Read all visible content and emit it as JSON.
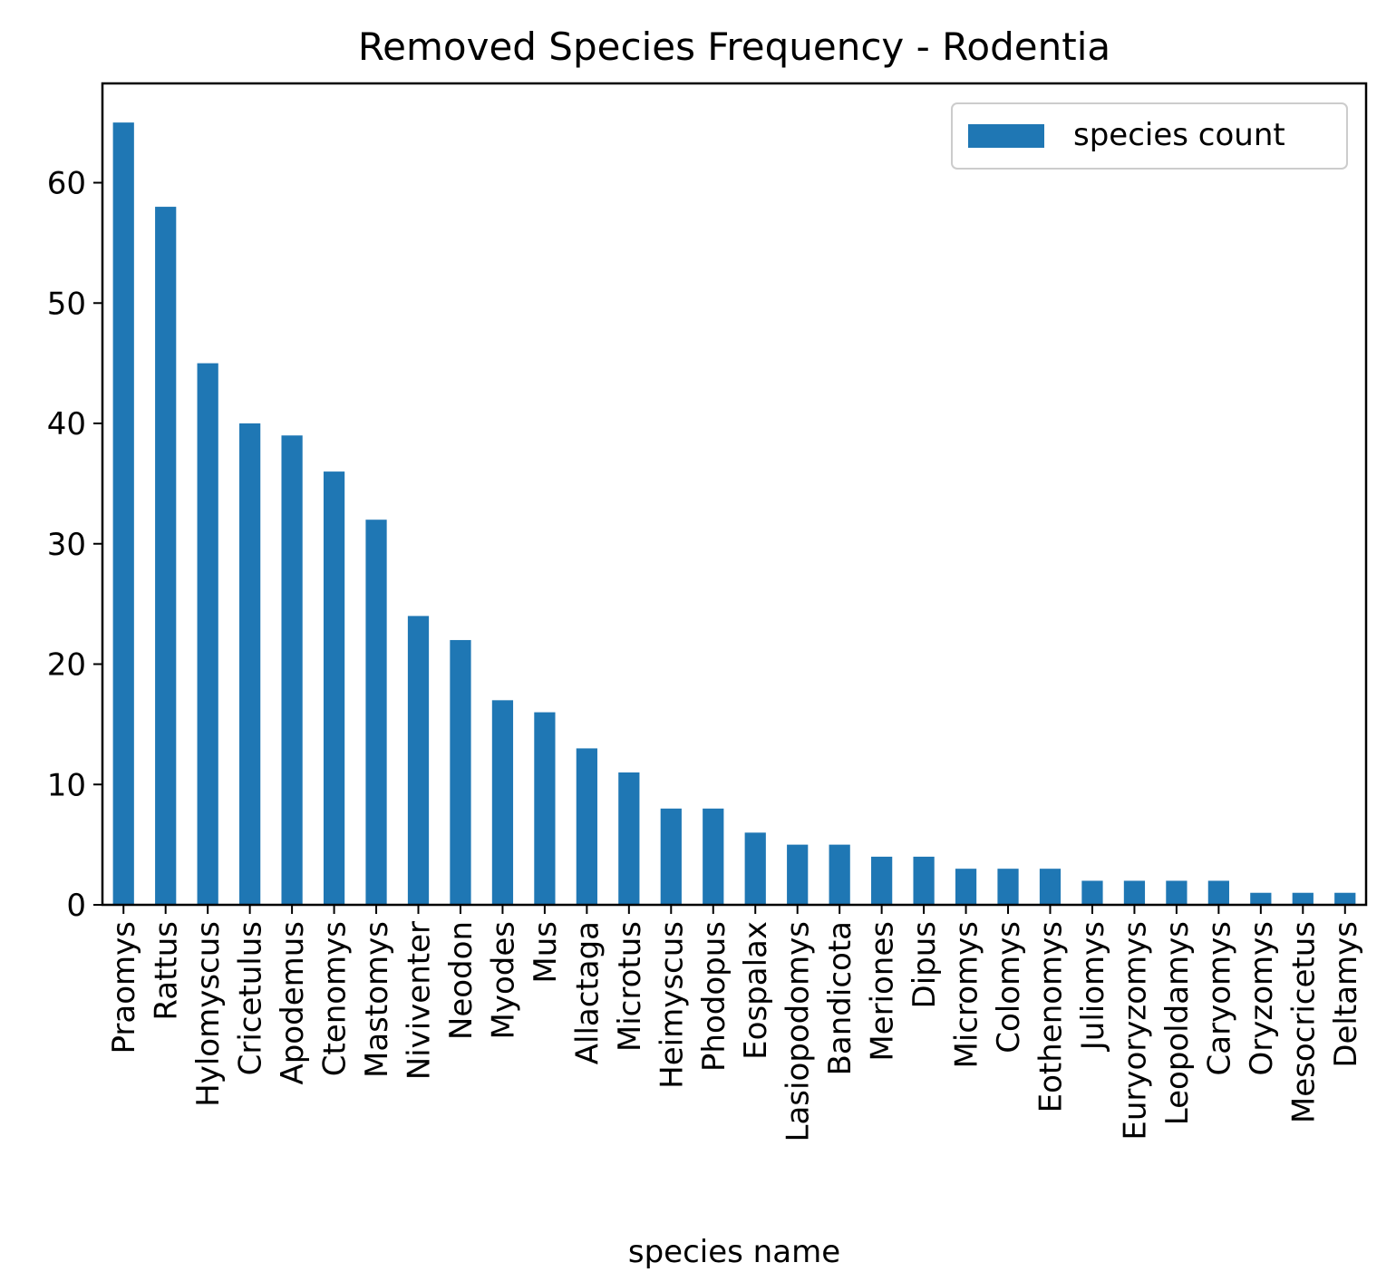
{
  "chart_data": {
    "type": "bar",
    "title": "Removed Species Frequency - Rodentia",
    "xlabel": "species name",
    "ylabel": "",
    "ylim": [
      0,
      68.25
    ],
    "yticks": [
      0,
      10,
      20,
      30,
      40,
      50,
      60
    ],
    "grid": false,
    "legend_position": "top-right",
    "bar_color": "#1f77b4",
    "categories": [
      "Praomys",
      "Rattus",
      "Hylomyscus",
      "Cricetulus",
      "Apodemus",
      "Ctenomys",
      "Mastomys",
      "Niviventer",
      "Neodon",
      "Myodes",
      "Mus",
      "Allactaga",
      "Microtus",
      "Heimyscus",
      "Phodopus",
      "Eospalax",
      "Lasiopodomys",
      "Bandicota",
      "Meriones",
      "Dipus",
      "Micromys",
      "Colomys",
      "Eothenomys",
      "Juliomys",
      "Euryoryzomys",
      "Leopoldamys",
      "Caryomys",
      "Oryzomys",
      "Mesocricetus",
      "Deltamys"
    ],
    "series": [
      {
        "name": "species count",
        "values": [
          65,
          58,
          45,
          40,
          39,
          36,
          32,
          24,
          22,
          17,
          16,
          13,
          11,
          8,
          8,
          6,
          5,
          5,
          4,
          4,
          3,
          3,
          3,
          2,
          2,
          2,
          2,
          1,
          1,
          1
        ]
      }
    ]
  }
}
